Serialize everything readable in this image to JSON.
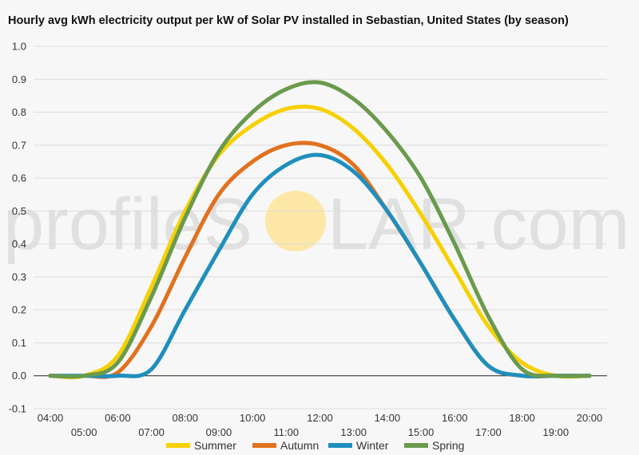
{
  "title": "Hourly avg kWh electricity output per kW of Solar PV installed in Sebastian, United States (by season)",
  "watermark": {
    "left": "profileS",
    "right": "LAR.com",
    "sun_color": "#fde7a6"
  },
  "chart_data": {
    "type": "line",
    "title": "Hourly avg kWh electricity output per kW of Solar PV installed in Sebastian, United States (by season)",
    "xlabel": "",
    "ylabel": "",
    "ylim": [
      -0.1,
      1.0
    ],
    "yticks": [
      "1.0",
      "0.9",
      "0.8",
      "0.7",
      "0.6",
      "0.5",
      "0.4",
      "0.3",
      "0.2",
      "0.1",
      "0.0",
      "-0.1"
    ],
    "yticks_values": [
      1.0,
      0.9,
      0.8,
      0.7,
      0.6,
      0.5,
      0.4,
      0.3,
      0.2,
      0.1,
      0.0,
      -0.1
    ],
    "x": [
      "04:00",
      "05:00",
      "06:00",
      "07:00",
      "08:00",
      "09:00",
      "10:00",
      "11:00",
      "12:00",
      "13:00",
      "14:00",
      "15:00",
      "16:00",
      "17:00",
      "18:00",
      "19:00",
      "20:00"
    ],
    "grid": true,
    "legend_position": "bottom",
    "series": [
      {
        "name": "Summer",
        "color": "#f7d000",
        "values": [
          0.0,
          0.0,
          0.06,
          0.27,
          0.5,
          0.67,
          0.76,
          0.81,
          0.81,
          0.75,
          0.64,
          0.49,
          0.32,
          0.15,
          0.04,
          0.0,
          0.0
        ]
      },
      {
        "name": "Autumn",
        "color": "#e2711d",
        "values": [
          0.0,
          0.0,
          0.01,
          0.15,
          0.36,
          0.55,
          0.65,
          0.7,
          0.7,
          0.64,
          0.5,
          0.34,
          0.17,
          0.03,
          0.0,
          0.0,
          0.0
        ]
      },
      {
        "name": "Winter",
        "color": "#1f8fbd",
        "values": [
          0.0,
          0.0,
          0.0,
          0.02,
          0.2,
          0.38,
          0.55,
          0.64,
          0.67,
          0.62,
          0.5,
          0.34,
          0.17,
          0.03,
          0.0,
          0.0,
          0.0
        ]
      },
      {
        "name": "Spring",
        "color": "#6a9a4d",
        "values": [
          0.0,
          0.0,
          0.04,
          0.24,
          0.48,
          0.68,
          0.8,
          0.87,
          0.89,
          0.84,
          0.74,
          0.6,
          0.4,
          0.18,
          0.02,
          0.0,
          0.0
        ]
      }
    ]
  }
}
